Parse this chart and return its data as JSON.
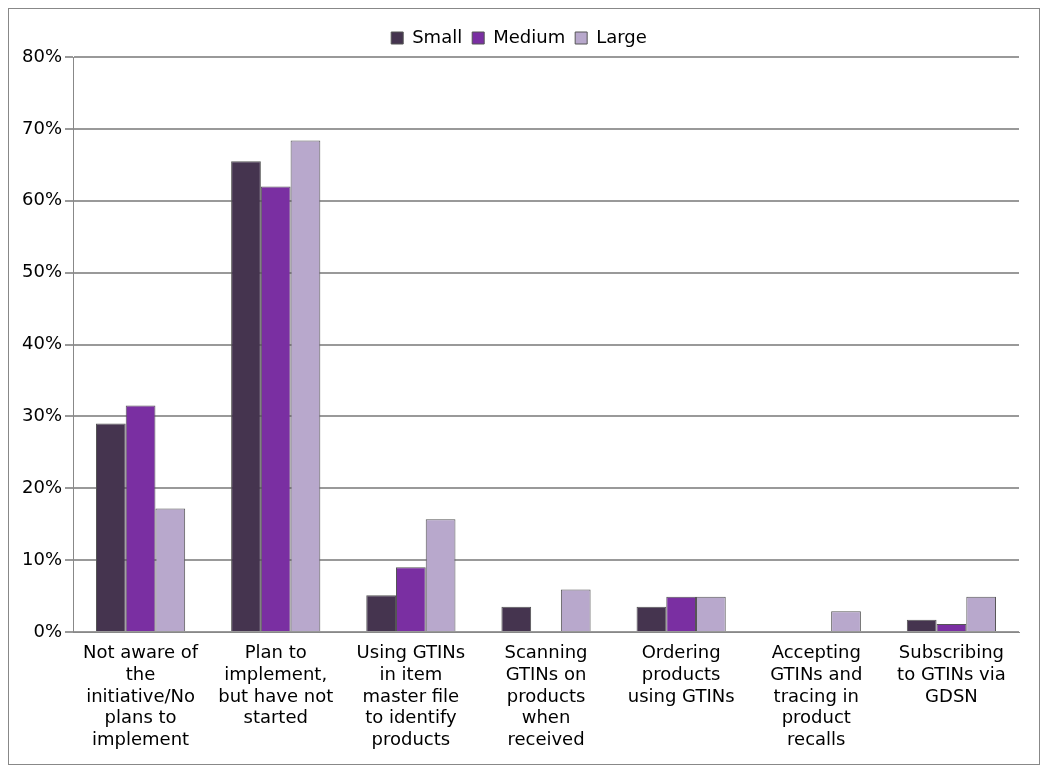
{
  "chart_data": {
    "type": "bar",
    "categories": [
      "Not aware of the initiative/No plans to implement",
      "Plan to implement, but have not started",
      "Using GTINs in item master file to identify products",
      "Scanning GTINs on products when received",
      "Ordering products using GTINs",
      "Accepting GTINs and tracing in product recalls",
      "Subscribing to GTINs via GDSN"
    ],
    "series": [
      {
        "name": "Small",
        "color": "#45344f",
        "values": [
          29,
          65.5,
          5.1,
          3.5,
          3.5,
          0,
          1.7
        ]
      },
      {
        "name": "Medium",
        "color": "#7a2fa2",
        "values": [
          31.5,
          62,
          9,
          0,
          4.9,
          0,
          1.1
        ]
      },
      {
        "name": "Large",
        "color": "#b8a8cc",
        "values": [
          17.2,
          68.4,
          15.7,
          5.9,
          4.9,
          2.9,
          4.9
        ]
      }
    ],
    "ylim": [
      0,
      80
    ],
    "yticks": [
      {
        "value": 0,
        "label": "0%"
      },
      {
        "value": 10,
        "label": "10%"
      },
      {
        "value": 20,
        "label": "20%"
      },
      {
        "value": 30,
        "label": "30%"
      },
      {
        "value": 40,
        "label": "40%"
      },
      {
        "value": 50,
        "label": "50%"
      },
      {
        "value": 60,
        "label": "60%"
      },
      {
        "value": 70,
        "label": "70%"
      },
      {
        "value": 80,
        "label": "80%"
      }
    ],
    "grid": "y",
    "legend": "top"
  }
}
